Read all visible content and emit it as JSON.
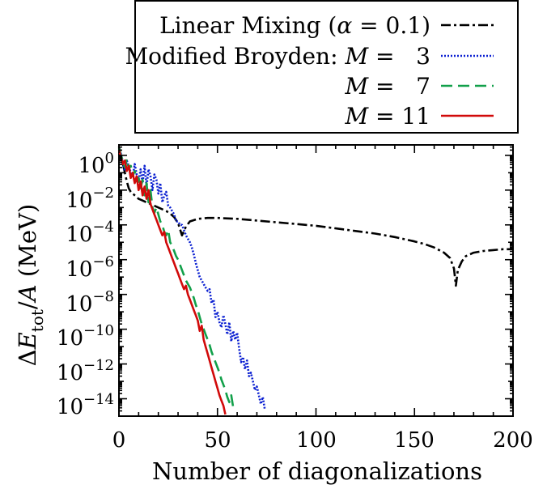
{
  "chart_data": {
    "type": "line",
    "xlabel": "Number of diagonalizations",
    "ylabel_parts": {
      "delta": "Δ",
      "E": "E",
      "sub": "tot",
      "rest": "/",
      "A": "A",
      "unit": " (MeV)"
    },
    "xlim": [
      0,
      200
    ],
    "ylim_log10": [
      -15,
      0.6
    ],
    "yscale": "log",
    "x_ticks": [
      0,
      50,
      100,
      150,
      200
    ],
    "y_ticks": [
      {
        "base": "10",
        "exp": "0"
      },
      {
        "base": "10",
        "exp": "−2"
      },
      {
        "base": "10",
        "exp": "−4"
      },
      {
        "base": "10",
        "exp": "−6"
      },
      {
        "base": "10",
        "exp": "−8"
      },
      {
        "base": "10",
        "exp": "−10"
      },
      {
        "base": "10",
        "exp": "−12"
      },
      {
        "base": "10",
        "exp": "−14"
      }
    ],
    "y_tick_values_log10": [
      0,
      -2,
      -4,
      -6,
      -8,
      -10,
      -12,
      -14
    ],
    "legend_placement": "above plot, right",
    "legend": [
      {
        "label_main": "Linear Mixing (",
        "alpha": "α",
        "label_rest": " = 0.1)"
      },
      {
        "label_main": "Modified Broyden: ",
        "M": "M",
        "label_rest": " =   3"
      },
      {
        "label_main": "",
        "M": "M",
        "label_rest": " =   7"
      },
      {
        "label_main": "",
        "M": "M",
        "label_rest": " = 11"
      }
    ],
    "series": [
      {
        "name": "Linear Mixing (α = 0.1)",
        "color": "#000000",
        "dash": "12,4,3,4",
        "x": [
          0,
          1,
          2,
          3,
          4,
          5,
          6,
          8,
          10,
          12,
          14,
          16,
          18,
          20,
          22,
          24,
          26,
          28,
          30,
          32,
          34,
          36,
          40,
          45,
          50,
          60,
          70,
          80,
          90,
          100,
          110,
          120,
          130,
          140,
          150,
          155,
          160,
          165,
          168,
          170,
          171,
          172,
          174,
          176,
          180,
          185,
          190,
          195,
          200
        ],
        "log10_y": [
          0.5,
          0.0,
          -0.5,
          -1.0,
          -1.5,
          -1.9,
          -2.1,
          -2.3,
          -2.5,
          -2.6,
          -2.7,
          -2.8,
          -2.9,
          -3.0,
          -3.1,
          -3.2,
          -3.35,
          -3.55,
          -3.9,
          -4.6,
          -4.1,
          -3.8,
          -3.65,
          -3.6,
          -3.6,
          -3.65,
          -3.75,
          -3.85,
          -3.95,
          -4.05,
          -4.2,
          -4.35,
          -4.5,
          -4.7,
          -4.95,
          -5.1,
          -5.3,
          -5.6,
          -5.9,
          -6.5,
          -7.5,
          -6.6,
          -6.1,
          -5.8,
          -5.6,
          -5.5,
          -5.45,
          -5.4,
          -5.4
        ]
      },
      {
        "name": "Modified Broyden: M = 3",
        "color": "#0a1fd1",
        "dash": "2,2",
        "x": [
          0,
          1,
          2,
          3,
          4,
          5,
          6,
          7,
          8,
          9,
          10,
          11,
          12,
          13,
          14,
          15,
          16,
          17,
          18,
          19,
          20,
          21,
          22,
          23,
          24,
          25,
          26,
          27,
          28,
          29,
          30,
          31,
          32,
          33,
          34,
          35,
          36,
          37,
          38,
          39,
          40,
          41,
          42,
          43,
          44,
          45,
          46,
          47,
          48,
          49,
          50,
          51,
          52,
          53,
          54,
          55,
          56,
          57,
          58,
          59,
          60,
          61,
          62,
          63,
          64,
          65,
          66,
          67,
          68,
          69,
          70,
          71,
          72,
          73,
          74
        ],
        "log10_y": [
          0.3,
          0.1,
          -0.5,
          -0.9,
          -0.3,
          -0.6,
          -1.0,
          -1.2,
          -0.5,
          -1.1,
          -1.5,
          -0.8,
          -1.6,
          -0.6,
          -1.8,
          -0.8,
          -1.2,
          -2.0,
          -1.1,
          -1.4,
          -2.2,
          -1.6,
          -2.7,
          -2.3,
          -2.1,
          -2.9,
          -3.0,
          -3.2,
          -3.4,
          -3.8,
          -3.8,
          -4.0,
          -4.0,
          -4.3,
          -4.6,
          -4.8,
          -5.0,
          -5.3,
          -5.7,
          -6.2,
          -6.6,
          -7.0,
          -7.2,
          -7.4,
          -7.6,
          -7.8,
          -7.7,
          -8.5,
          -8.3,
          -9.3,
          -9.0,
          -9.6,
          -9.9,
          -9.2,
          -9.7,
          -10.3,
          -9.6,
          -10.7,
          -10.1,
          -10.6,
          -10.2,
          -11.1,
          -11.9,
          -11.6,
          -12.3,
          -11.8,
          -12.7,
          -12.5,
          -13.0,
          -13.5,
          -13.3,
          -13.8,
          -14.3,
          -13.9,
          -14.6
        ]
      },
      {
        "name": "M = 7",
        "color": "#12a04a",
        "dash": "14,7",
        "x": [
          0,
          1,
          2,
          3,
          4,
          5,
          6,
          7,
          8,
          9,
          10,
          11,
          12,
          13,
          14,
          15,
          16,
          17,
          18,
          19,
          20,
          21,
          22,
          23,
          24,
          25,
          26,
          27,
          28,
          29,
          30,
          31,
          32,
          33,
          34,
          35,
          36,
          37,
          38,
          39,
          40,
          41,
          42,
          43,
          44,
          45,
          46,
          47,
          48,
          49,
          50,
          51,
          52,
          53,
          54,
          55,
          56,
          57,
          58
        ],
        "log10_y": [
          0.4,
          0.0,
          -0.3,
          -0.7,
          -0.2,
          -0.8,
          -0.6,
          -1.2,
          -0.9,
          -1.5,
          -1.3,
          -1.9,
          -1.4,
          -2.3,
          -1.6,
          -2.7,
          -2.0,
          -3.0,
          -3.3,
          -3.0,
          -3.4,
          -3.8,
          -4.0,
          -4.4,
          -4.6,
          -4.3,
          -5.0,
          -5.2,
          -5.5,
          -5.8,
          -6.0,
          -6.3,
          -6.6,
          -6.9,
          -7.2,
          -7.4,
          -7.6,
          -7.9,
          -8.2,
          -8.6,
          -8.9,
          -9.3,
          -9.7,
          -10.0,
          -10.3,
          -10.6,
          -10.9,
          -11.3,
          -11.6,
          -11.9,
          -12.2,
          -12.5,
          -12.9,
          -13.2,
          -13.5,
          -13.9,
          -14.2,
          -13.8,
          -14.5
        ]
      },
      {
        "name": "M = 11",
        "color": "#d10a0a",
        "dash": "",
        "x": [
          0,
          1,
          2,
          3,
          4,
          5,
          6,
          7,
          8,
          9,
          10,
          11,
          12,
          13,
          14,
          15,
          16,
          17,
          18,
          19,
          20,
          21,
          22,
          23,
          24,
          25,
          26,
          27,
          28,
          29,
          30,
          31,
          32,
          33,
          34,
          35,
          36,
          37,
          38,
          39,
          40,
          41,
          42,
          43,
          44,
          45,
          46,
          47,
          48,
          49,
          50,
          51,
          52,
          53,
          54
        ],
        "log10_y": [
          0.3,
          -0.1,
          -0.5,
          -0.3,
          -0.9,
          -0.6,
          -1.3,
          -1.0,
          -1.6,
          -1.2,
          -2.0,
          -1.5,
          -2.3,
          -1.8,
          -2.5,
          -2.0,
          -2.8,
          -3.1,
          -3.4,
          -3.7,
          -4.0,
          -4.3,
          -4.6,
          -4.4,
          -5.0,
          -5.3,
          -5.6,
          -5.9,
          -6.2,
          -6.5,
          -6.8,
          -7.1,
          -7.4,
          -7.7,
          -7.5,
          -8.0,
          -8.3,
          -8.6,
          -8.9,
          -9.2,
          -9.5,
          -10.1,
          -9.8,
          -10.6,
          -11.0,
          -11.4,
          -11.8,
          -12.2,
          -12.6,
          -13.0,
          -13.4,
          -13.8,
          -14.1,
          -14.4,
          -14.9
        ]
      }
    ]
  }
}
